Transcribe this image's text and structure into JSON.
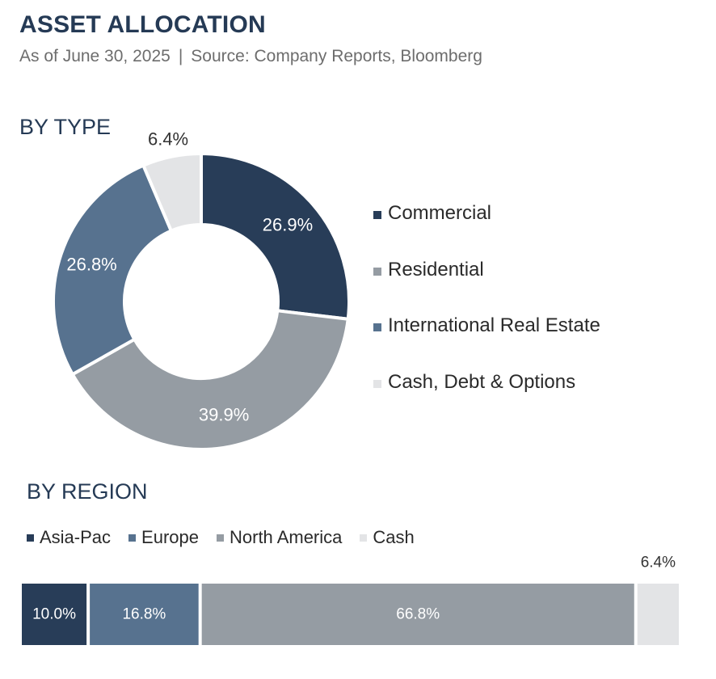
{
  "header": {
    "title": "ASSET ALLOCATION",
    "date": "As of June 30, 2025",
    "separator": "|",
    "source": "Source: Company Reports, Bloomberg"
  },
  "chart_data": [
    {
      "type": "pie",
      "subtype": "donut",
      "title": "BY TYPE",
      "legend_position": "right",
      "categories": [
        "Commercial",
        "Residential",
        "International Real Estate",
        "Cash, Debt & Options"
      ],
      "values": [
        26.9,
        39.9,
        26.8,
        6.4
      ],
      "labels": [
        "26.9%",
        "39.9%",
        "26.8%",
        "6.4%"
      ],
      "colors": [
        "#283d58",
        "#959ca3",
        "#57728f",
        "#e3e4e6"
      ],
      "label_colors": [
        "#ffffff",
        "#ffffff",
        "#ffffff",
        "#333333"
      ]
    },
    {
      "type": "bar",
      "subtype": "stacked-horizontal-100",
      "title": "BY REGION",
      "legend_position": "top",
      "categories": [
        "Asia-Pac",
        "Europe",
        "North America",
        "Cash"
      ],
      "values": [
        10.0,
        16.8,
        66.8,
        6.4
      ],
      "labels": [
        "10.0%",
        "16.8%",
        "66.8%",
        "6.4%"
      ],
      "colors": [
        "#283d58",
        "#57728f",
        "#959ca3",
        "#e3e4e6"
      ],
      "label_colors": [
        "#ffffff",
        "#ffffff",
        "#ffffff",
        "#333333"
      ]
    }
  ]
}
